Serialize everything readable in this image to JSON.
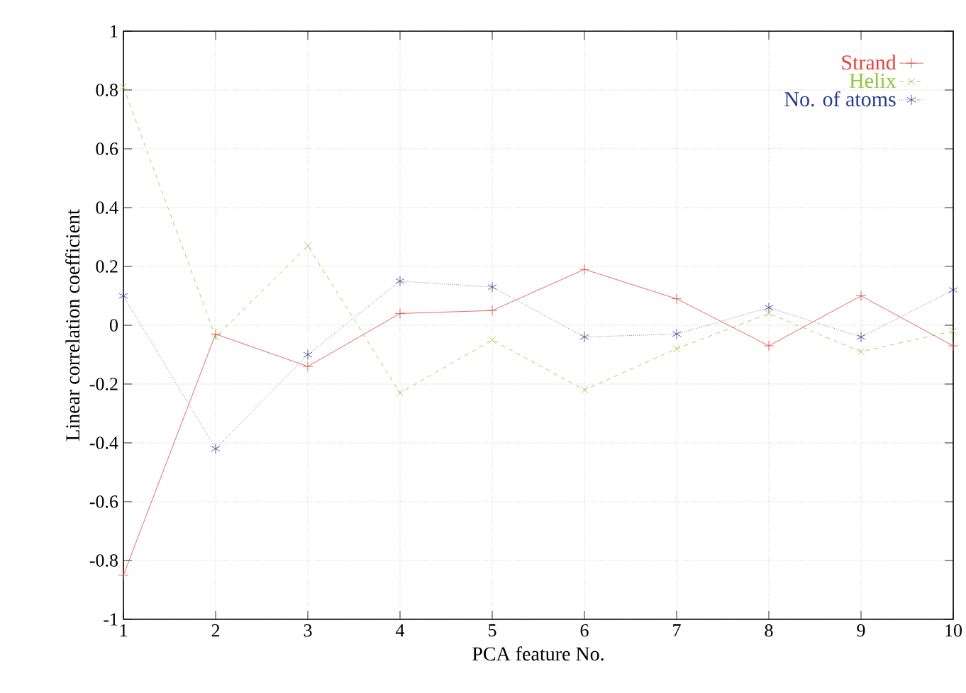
{
  "chart_data": {
    "type": "line",
    "xlabel": "PCA feature No.",
    "ylabel": "Linear correlation coefficient",
    "x": [
      1,
      2,
      3,
      4,
      5,
      6,
      7,
      8,
      9,
      10
    ],
    "xlim": [
      1,
      10
    ],
    "xticks": [
      1,
      2,
      3,
      4,
      5,
      6,
      7,
      8,
      9,
      10
    ],
    "ylim": [
      -1,
      1
    ],
    "yticks": [
      -1,
      -0.8,
      -0.6,
      -0.4,
      -0.2,
      0,
      0.2,
      0.4,
      0.6,
      0.8,
      1
    ],
    "grid": true,
    "legend": "top right",
    "series": [
      {
        "name": "Strand",
        "color": "#e8413c",
        "marker": "plus",
        "line_style": "solid",
        "values": [
          -0.85,
          -0.03,
          -0.14,
          0.04,
          0.05,
          0.19,
          0.09,
          -0.07,
          0.1,
          -0.07
        ]
      },
      {
        "name": "Helix",
        "color": "#8fc43a",
        "marker": "x",
        "line_style": "dashed",
        "values": [
          0.81,
          -0.04,
          0.27,
          -0.23,
          -0.05,
          -0.22,
          -0.08,
          0.04,
          -0.09,
          -0.02
        ]
      },
      {
        "name": "No. of atoms",
        "color": "#2b3a8f",
        "marker": "cross",
        "line_style": "dotted",
        "values": [
          0.1,
          -0.42,
          -0.1,
          0.15,
          0.13,
          -0.04,
          -0.03,
          0.06,
          -0.04,
          0.12
        ]
      }
    ]
  }
}
